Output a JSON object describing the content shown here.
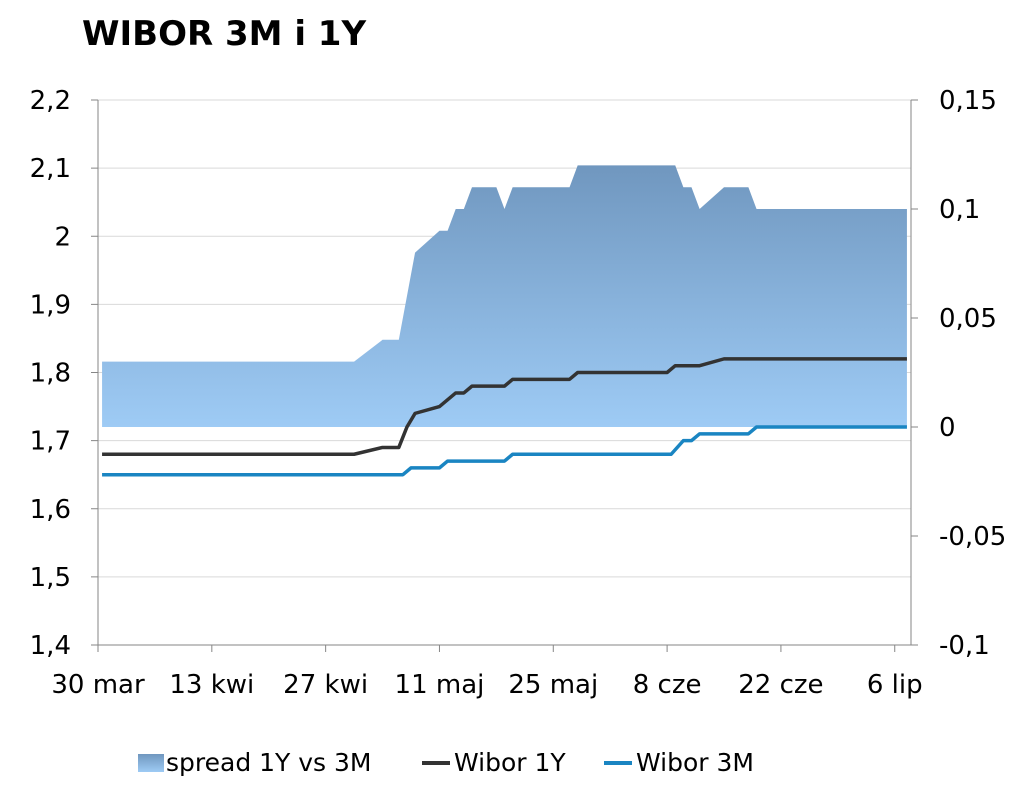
{
  "chart_data": {
    "type": "line",
    "title": "WIBOR 3M i 1Y",
    "x_tick_labels": [
      "30 mar",
      "13 kwi",
      "27 kwi",
      "11 maj",
      "25 maj",
      "8 cze",
      "22 cze",
      "6 lip"
    ],
    "x_tick_days": [
      0,
      14,
      28,
      42,
      56,
      70,
      84,
      98
    ],
    "y_left": {
      "lim": [
        1.4,
        2.2
      ],
      "ticks": [
        "1,4",
        "1,5",
        "1,6",
        "1,7",
        "1,8",
        "1,9",
        "2",
        "2,1",
        "2,2"
      ],
      "tick_values": [
        1.4,
        1.5,
        1.6,
        1.7,
        1.8,
        1.9,
        2.0,
        2.1,
        2.2
      ]
    },
    "y_right": {
      "lim": [
        -0.1,
        0.15
      ],
      "ticks": [
        "-0,1",
        "-0,05",
        "0",
        "0,05",
        "0,1",
        "0,15"
      ],
      "tick_values": [
        -0.1,
        -0.05,
        0,
        0.05,
        0.1,
        0.15
      ]
    },
    "grid": "horizontal",
    "legend_position": "bottom",
    "series": [
      {
        "name": "spread 1Y vs 3M",
        "kind": "area",
        "axis": "right",
        "color_top": "#7097bf",
        "color_bottom": "#9ecbf5",
        "points": [
          [
            0.5,
            0.03
          ],
          [
            31.5,
            0.03
          ],
          [
            35,
            0.04
          ],
          [
            37,
            0.04
          ],
          [
            39,
            0.08
          ],
          [
            42,
            0.09
          ],
          [
            43,
            0.09
          ],
          [
            44,
            0.1
          ],
          [
            45,
            0.1
          ],
          [
            46,
            0.11
          ],
          [
            49,
            0.11
          ],
          [
            50,
            0.1
          ],
          [
            51,
            0.11
          ],
          [
            58,
            0.11
          ],
          [
            59,
            0.12
          ],
          [
            71,
            0.12
          ],
          [
            72,
            0.11
          ],
          [
            73,
            0.11
          ],
          [
            74,
            0.1
          ],
          [
            77,
            0.11
          ],
          [
            80,
            0.11
          ],
          [
            81,
            0.1
          ],
          [
            99.5,
            0.1
          ]
        ]
      },
      {
        "name": "Wibor 1Y",
        "kind": "line",
        "axis": "left",
        "color": "#333333",
        "points": [
          [
            0.5,
            1.68
          ],
          [
            31.5,
            1.68
          ],
          [
            35,
            1.69
          ],
          [
            37,
            1.69
          ],
          [
            38,
            1.72
          ],
          [
            39,
            1.74
          ],
          [
            42,
            1.75
          ],
          [
            44,
            1.77
          ],
          [
            45,
            1.77
          ],
          [
            46,
            1.78
          ],
          [
            50,
            1.78
          ],
          [
            51,
            1.79
          ],
          [
            58,
            1.79
          ],
          [
            59,
            1.8
          ],
          [
            70,
            1.8
          ],
          [
            71,
            1.81
          ],
          [
            74,
            1.81
          ],
          [
            77,
            1.82
          ],
          [
            99.5,
            1.82
          ]
        ]
      },
      {
        "name": "Wibor 3M",
        "kind": "line",
        "axis": "left",
        "color": "#1a85c2",
        "points": [
          [
            0.5,
            1.65
          ],
          [
            37.5,
            1.65
          ],
          [
            38.5,
            1.66
          ],
          [
            42,
            1.66
          ],
          [
            43,
            1.67
          ],
          [
            50,
            1.67
          ],
          [
            51,
            1.68
          ],
          [
            70.5,
            1.68
          ],
          [
            72,
            1.7
          ],
          [
            73,
            1.7
          ],
          [
            74,
            1.71
          ],
          [
            80,
            1.71
          ],
          [
            81,
            1.72
          ],
          [
            99.5,
            1.72
          ]
        ]
      }
    ]
  }
}
